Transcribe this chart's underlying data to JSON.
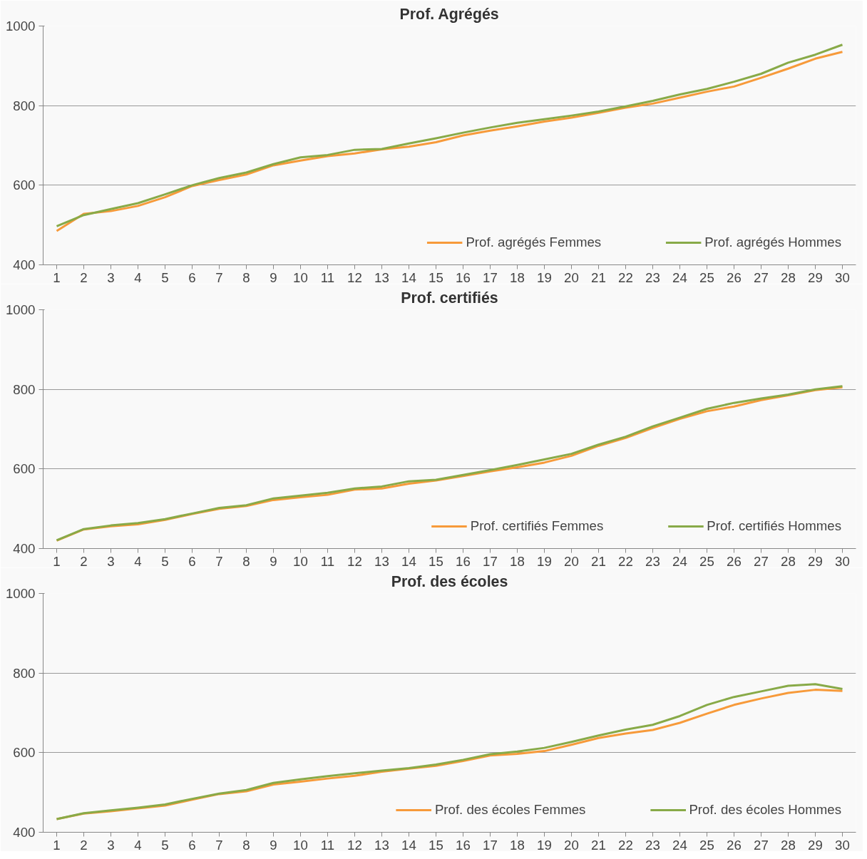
{
  "chart_data": [
    {
      "type": "line",
      "title": "Prof. Agrégés",
      "x": [
        1,
        2,
        3,
        4,
        5,
        6,
        7,
        8,
        9,
        10,
        11,
        12,
        13,
        14,
        15,
        16,
        17,
        18,
        19,
        20,
        21,
        22,
        23,
        24,
        25,
        26,
        27,
        28,
        29,
        30
      ],
      "ylim": [
        400,
        1000
      ],
      "yticks": [
        400,
        600,
        800,
        1000
      ],
      "xlim": [
        0.5,
        30.5
      ],
      "xticks": [
        1,
        2,
        3,
        4,
        5,
        6,
        7,
        8,
        9,
        10,
        11,
        12,
        13,
        14,
        15,
        16,
        17,
        18,
        19,
        20,
        21,
        22,
        23,
        24,
        25,
        26,
        27,
        28,
        29,
        30
      ],
      "grid": "y",
      "legend": "bottom",
      "line_style": "solid",
      "series": [
        {
          "name": "Prof. agrégés Femmes",
          "color": "#f79a3a",
          "values": [
            485,
            528,
            535,
            548,
            570,
            598,
            613,
            627,
            650,
            662,
            673,
            680,
            690,
            697,
            708,
            725,
            737,
            748,
            760,
            770,
            782,
            795,
            805,
            820,
            835,
            848,
            870,
            893,
            918,
            935
          ]
        },
        {
          "name": "Prof. agrégés Hommes",
          "color": "#88aa48",
          "values": [
            497,
            525,
            540,
            555,
            577,
            600,
            618,
            632,
            653,
            670,
            676,
            689,
            691,
            705,
            718,
            732,
            745,
            757,
            766,
            775,
            785,
            798,
            812,
            828,
            842,
            860,
            880,
            908,
            928,
            953
          ]
        }
      ]
    },
    {
      "type": "line",
      "title": "Prof. certifiés",
      "x": [
        1,
        2,
        3,
        4,
        5,
        6,
        7,
        8,
        9,
        10,
        11,
        12,
        13,
        14,
        15,
        16,
        17,
        18,
        19,
        20,
        21,
        22,
        23,
        24,
        25,
        26,
        27,
        28,
        29,
        30
      ],
      "ylim": [
        400,
        1000
      ],
      "yticks": [
        400,
        600,
        800,
        1000
      ],
      "xlim": [
        0.5,
        30.5
      ],
      "xticks": [
        1,
        2,
        3,
        4,
        5,
        6,
        7,
        8,
        9,
        10,
        11,
        12,
        13,
        14,
        15,
        16,
        17,
        18,
        19,
        20,
        21,
        22,
        23,
        24,
        25,
        26,
        27,
        28,
        29,
        30
      ],
      "grid": "y",
      "legend": "bottom",
      "line_style": "solid",
      "series": [
        {
          "name": "Prof. certifiés Femmes",
          "color": "#f79a3a",
          "values": [
            420,
            448,
            456,
            461,
            472,
            487,
            500,
            507,
            522,
            529,
            535,
            548,
            551,
            563,
            571,
            582,
            594,
            604,
            616,
            633,
            658,
            678,
            703,
            726,
            745,
            757,
            773,
            785,
            798,
            805
          ]
        },
        {
          "name": "Prof. certifiés Hommes",
          "color": "#88aa48",
          "values": [
            421,
            449,
            458,
            464,
            474,
            488,
            502,
            509,
            526,
            533,
            540,
            551,
            556,
            569,
            573,
            585,
            597,
            610,
            624,
            638,
            661,
            681,
            707,
            729,
            751,
            766,
            777,
            787,
            800,
            808
          ]
        }
      ]
    },
    {
      "type": "line",
      "title": "Prof. des écoles",
      "x": [
        1,
        2,
        3,
        4,
        5,
        6,
        7,
        8,
        9,
        10,
        11,
        12,
        13,
        14,
        15,
        16,
        17,
        18,
        19,
        20,
        21,
        22,
        23,
        24,
        25,
        26,
        27,
        28,
        29,
        30
      ],
      "ylim": [
        400,
        1000
      ],
      "yticks": [
        400,
        600,
        800,
        1000
      ],
      "xlim": [
        0.5,
        30.5
      ],
      "xticks": [
        1,
        2,
        3,
        4,
        5,
        6,
        7,
        8,
        9,
        10,
        11,
        12,
        13,
        14,
        15,
        16,
        17,
        18,
        19,
        20,
        21,
        22,
        23,
        24,
        25,
        26,
        27,
        28,
        29,
        30
      ],
      "grid": "y",
      "legend": "bottom",
      "line_style": "solid",
      "series": [
        {
          "name": "Prof. des écoles Femmes",
          "color": "#f79a3a",
          "values": [
            433,
            447,
            453,
            460,
            467,
            482,
            496,
            503,
            520,
            527,
            535,
            542,
            552,
            560,
            567,
            579,
            593,
            597,
            604,
            620,
            637,
            648,
            657,
            675,
            698,
            720,
            736,
            750,
            758,
            755
          ]
        },
        {
          "name": "Prof. des écoles Hommes",
          "color": "#88aa48",
          "values": [
            433,
            448,
            455,
            462,
            470,
            484,
            497,
            506,
            524,
            533,
            541,
            548,
            555,
            561,
            570,
            582,
            596,
            603,
            612,
            627,
            643,
            658,
            670,
            692,
            720,
            740,
            754,
            768,
            772,
            760
          ]
        }
      ]
    }
  ]
}
